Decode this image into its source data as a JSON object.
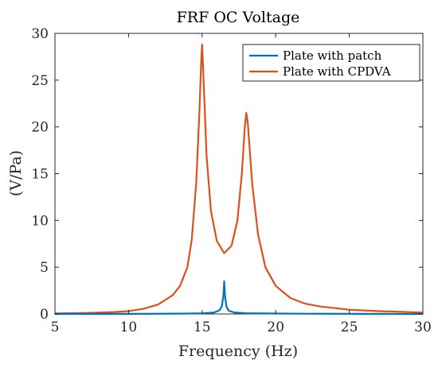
{
  "chart_data": {
    "type": "line",
    "title": "FRF OC Voltage",
    "xlabel": "Frequency (Hz)",
    "ylabel": "(V/Pa)",
    "xlim": [
      5,
      30
    ],
    "ylim": [
      0,
      30
    ],
    "xticks": [
      5,
      10,
      15,
      20,
      25,
      30
    ],
    "yticks": [
      0,
      5,
      10,
      15,
      20,
      25,
      30
    ],
    "grid": false,
    "legend_position": "top-right",
    "series": [
      {
        "name": "Plate with patch",
        "color": "#0072BD",
        "x": [
          5,
          8,
          10,
          12,
          14,
          15,
          15.8,
          16.2,
          16.35,
          16.45,
          16.5,
          16.55,
          16.65,
          16.8,
          17.2,
          18,
          20,
          23,
          26,
          30
        ],
        "y": [
          0.0,
          0.01,
          0.01,
          0.02,
          0.04,
          0.07,
          0.15,
          0.4,
          0.9,
          2.0,
          3.5,
          2.0,
          0.8,
          0.35,
          0.15,
          0.08,
          0.04,
          0.02,
          0.01,
          0.0
        ]
      },
      {
        "name": "Plate with CPDVA",
        "color": "#D95319",
        "x": [
          5,
          7,
          9,
          10,
          11,
          12,
          13,
          13.5,
          14,
          14.3,
          14.6,
          14.8,
          14.95,
          15.0,
          15.1,
          15.3,
          15.6,
          16.0,
          16.5,
          17.0,
          17.4,
          17.7,
          17.9,
          18.0,
          18.1,
          18.4,
          18.8,
          19.3,
          20,
          21,
          22,
          23,
          25,
          27,
          30
        ],
        "y": [
          0.05,
          0.1,
          0.2,
          0.3,
          0.55,
          1.0,
          2.0,
          3.0,
          5.0,
          8.0,
          14.0,
          21.0,
          27.5,
          28.8,
          25.0,
          17.0,
          11.0,
          7.8,
          6.5,
          7.3,
          10.0,
          15.0,
          20.0,
          21.5,
          20.5,
          14.0,
          8.5,
          5.0,
          3.0,
          1.7,
          1.1,
          0.8,
          0.45,
          0.3,
          0.15
        ]
      }
    ]
  }
}
